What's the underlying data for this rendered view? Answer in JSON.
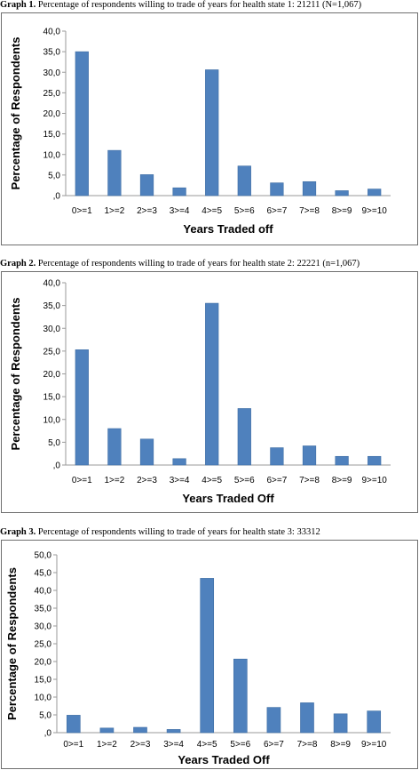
{
  "chart_data": [
    {
      "type": "bar",
      "caption_prefix": "Graph 1.",
      "caption": "Percentage of respondents willing to trade of years for health state 1: 21211 (N=1,067)",
      "xlabel": "Years Traded off",
      "ylabel": "Percentage of Respondents",
      "categories": [
        "0>=1",
        "1>=2",
        "2>=3",
        "3>=4",
        "4>=5",
        "5>=6",
        "6>=7",
        "7>=8",
        "8>=9",
        "9>=10"
      ],
      "values": [
        35.0,
        11.0,
        5.1,
        1.9,
        30.6,
        7.2,
        3.1,
        3.4,
        1.2,
        1.6
      ],
      "ylim": [
        0,
        40
      ],
      "yticks": [
        ",0",
        "5,0",
        "10,0",
        "15,0",
        "20,0",
        "25,0",
        "30,0",
        "35,0",
        "40,0"
      ]
    },
    {
      "type": "bar",
      "caption_prefix": "Graph 2.",
      "caption": "Percentage of respondents willing to trade of years for health state 2: 22221 (n=1,067)",
      "xlabel": "Years Traded Off",
      "ylabel": "Percentage of Respondents",
      "categories": [
        "0>=1",
        "1>=2",
        "2>=3",
        "3>=4",
        "4>=5",
        "5>=6",
        "6>=7",
        "7>=8",
        "8>=9",
        "9>=10"
      ],
      "values": [
        25.3,
        8.0,
        5.7,
        1.4,
        35.5,
        12.4,
        3.8,
        4.2,
        1.9,
        1.9
      ],
      "ylim": [
        0,
        40
      ],
      "yticks": [
        ",0",
        "5,0",
        "10,0",
        "15,0",
        "20,0",
        "25,0",
        "30,0",
        "35,0",
        "40,0"
      ]
    },
    {
      "type": "bar",
      "caption_prefix": "Graph 3.",
      "caption": "Percentage of respondents willing to trade of years for health state 3: 33312",
      "xlabel": "Years Traded Off",
      "ylabel": "Percentage of Respondents",
      "categories": [
        "0>=1",
        "1>=2",
        "2>=3",
        "3>=4",
        "4>=5",
        "5>=6",
        "6>=7",
        "7>=8",
        "8>=9",
        "9>=10"
      ],
      "values": [
        4.9,
        1.3,
        1.5,
        0.9,
        43.4,
        20.7,
        7.1,
        8.4,
        5.3,
        6.1
      ],
      "ylim": [
        0,
        50
      ],
      "yticks": [
        ",0",
        "5,0",
        "10,0",
        "15,0",
        "20,0",
        "25,0",
        "30,0",
        "35,0",
        "40,0",
        "45,0",
        "50,0"
      ]
    }
  ],
  "colors": {
    "bar": "#4f81bd",
    "frame": "#6f6f6f"
  }
}
